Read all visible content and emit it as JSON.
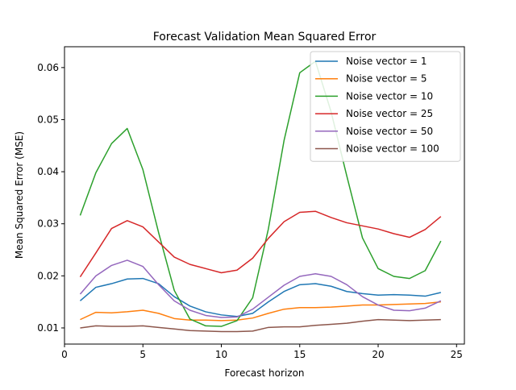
{
  "chart_data": {
    "type": "line",
    "title": "Forecast Validation Mean Squared Error",
    "xlabel": "Forecast horizon",
    "ylabel": "Mean Squared Error (MSE)",
    "xlim": [
      0,
      25.5
    ],
    "ylim": [
      0.0069,
      0.064
    ],
    "xticks": [
      0,
      5,
      10,
      15,
      20,
      25
    ],
    "yticks": [
      0.01,
      0.02,
      0.03,
      0.04,
      0.05,
      0.06
    ],
    "ytick_labels": [
      "0.01",
      "0.02",
      "0.03",
      "0.04",
      "0.05",
      "0.06"
    ],
    "grid": false,
    "legend_position": "top-right",
    "x": [
      1,
      2,
      3,
      4,
      5,
      6,
      7,
      8,
      9,
      10,
      11,
      12,
      13,
      14,
      15,
      16,
      17,
      18,
      19,
      20,
      21,
      22,
      23,
      24
    ],
    "series": [
      {
        "name": "Noise vector = 1",
        "color": "#1f77b4",
        "values": [
          0.0152,
          0.0178,
          0.0185,
          0.0194,
          0.0195,
          0.0185,
          0.016,
          0.0142,
          0.0131,
          0.0125,
          0.0122,
          0.0128,
          0.015,
          0.017,
          0.0183,
          0.0185,
          0.018,
          0.017,
          0.0166,
          0.0163,
          0.0164,
          0.0163,
          0.0161,
          0.0168
        ]
      },
      {
        "name": "Noise vector = 5",
        "color": "#ff7f0e",
        "values": [
          0.0116,
          0.013,
          0.0129,
          0.0131,
          0.0134,
          0.0128,
          0.0118,
          0.0115,
          0.0115,
          0.0114,
          0.0115,
          0.0119,
          0.0128,
          0.0136,
          0.0139,
          0.0139,
          0.014,
          0.0142,
          0.0144,
          0.0144,
          0.0145,
          0.0146,
          0.0147,
          0.015
        ]
      },
      {
        "name": "Noise vector = 10",
        "color": "#2ca02c",
        "values": [
          0.0316,
          0.0398,
          0.0454,
          0.0483,
          0.0404,
          0.0283,
          0.0172,
          0.0117,
          0.0104,
          0.0103,
          0.0114,
          0.0158,
          0.029,
          0.046,
          0.059,
          0.0612,
          0.0515,
          0.0392,
          0.0273,
          0.0214,
          0.0199,
          0.0195,
          0.021,
          0.0267
        ]
      },
      {
        "name": "Noise vector = 25",
        "color": "#d62728",
        "values": [
          0.0198,
          0.0244,
          0.0291,
          0.0306,
          0.0294,
          0.0265,
          0.0236,
          0.0222,
          0.0214,
          0.0206,
          0.0211,
          0.0234,
          0.0272,
          0.0304,
          0.0322,
          0.0324,
          0.0312,
          0.0302,
          0.0296,
          0.029,
          0.0281,
          0.0274,
          0.0289,
          0.0314
        ]
      },
      {
        "name": "Noise vector = 50",
        "color": "#9467bd",
        "values": [
          0.0165,
          0.02,
          0.022,
          0.023,
          0.0218,
          0.0183,
          0.0152,
          0.0134,
          0.0124,
          0.012,
          0.0121,
          0.0136,
          0.0159,
          0.0182,
          0.0199,
          0.0204,
          0.0199,
          0.0183,
          0.016,
          0.0144,
          0.0134,
          0.0133,
          0.0138,
          0.0152
        ]
      },
      {
        "name": "Noise vector = 100",
        "color": "#8c564b",
        "values": [
          0.01,
          0.0104,
          0.0103,
          0.0103,
          0.0104,
          0.0101,
          0.0098,
          0.0095,
          0.0094,
          0.0093,
          0.0093,
          0.0094,
          0.0101,
          0.0102,
          0.0102,
          0.0105,
          0.0107,
          0.0109,
          0.0113,
          0.0116,
          0.0115,
          0.0114,
          0.0115,
          0.0116
        ]
      }
    ]
  }
}
